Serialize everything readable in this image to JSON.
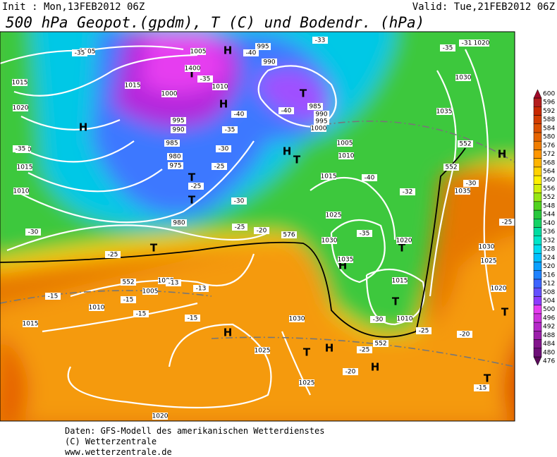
{
  "header": {
    "init": "Init : Mon,13FEB2012 06Z",
    "valid": "Valid: Tue,21FEB2012 06Z",
    "title": "500 hPa Geopot.(gpdm), T (C) und Bodendr. (hPa)"
  },
  "map": {
    "labels": [
      "H",
      "T",
      "T",
      "H",
      "H",
      "H",
      "T",
      "T",
      "T",
      "H",
      "T",
      "H",
      "T",
      "H",
      "T",
      "H",
      "H",
      "T",
      "T",
      "T",
      "1005",
      "1005",
      "995",
      "990",
      "1015",
      "1015",
      "1020",
      "1000",
      "1010",
      "985",
      "990",
      "995",
      "1000",
      "995",
      "990",
      "985",
      "980",
      "975",
      "980",
      "1020",
      "1015",
      "1010",
      "1005",
      "1010",
      "1015",
      "1025",
      "1030",
      "1035",
      "1020",
      "1015",
      "1010",
      "1000",
      "1005",
      "1010",
      "1015",
      "1030",
      "1025",
      "1025",
      "1020",
      "1035",
      "1030",
      "1035",
      "1030",
      "1025",
      "1020",
      "1020",
      "1400",
      "-35",
      "-35",
      "-40",
      "-40",
      "-40",
      "-35",
      "-30",
      "-25",
      "-25",
      "-30",
      "-35",
      "-30",
      "-25",
      "-20",
      "-25",
      "-35",
      "-40",
      "-32",
      "-30",
      "-25",
      "-15",
      "-15",
      "-15",
      "-15",
      "-13",
      "-13",
      "-25",
      "-20",
      "-30",
      "-25",
      "-20",
      "-15",
      "-33",
      "-35",
      "-31",
      "552",
      "552",
      "552",
      "552",
      "576"
    ]
  },
  "colorbar": {
    "ticks": [
      476,
      480,
      484,
      488,
      492,
      496,
      500,
      504,
      508,
      512,
      516,
      520,
      524,
      528,
      532,
      536,
      540,
      544,
      548,
      552,
      556,
      560,
      564,
      568,
      572,
      576,
      580,
      584,
      588,
      592,
      596,
      600
    ],
    "colors": [
      "#5a0a5a",
      "#6e0f78",
      "#82148c",
      "#9b1eaa",
      "#b428c8",
      "#cd32dc",
      "#e63cf0",
      "#8c3cff",
      "#6450ff",
      "#3c64ff",
      "#1e82ff",
      "#0aa0ff",
      "#00c0ff",
      "#00dcf0",
      "#00e6c8",
      "#00dca0",
      "#14d264",
      "#28c83c",
      "#50d21e",
      "#96e614",
      "#d2f00a",
      "#fff000",
      "#ffd200",
      "#ffb400",
      "#ff9600",
      "#f07d00",
      "#e66400",
      "#dc5000",
      "#d23c00",
      "#c82800",
      "#b41e1e",
      "#a00a28"
    ]
  },
  "footer": {
    "lines": [
      "Daten: GFS-Modell des amerikanischen Wetterdienstes",
      "(C) Wetterzentrale",
      "www.wetterzentrale.de"
    ]
  }
}
